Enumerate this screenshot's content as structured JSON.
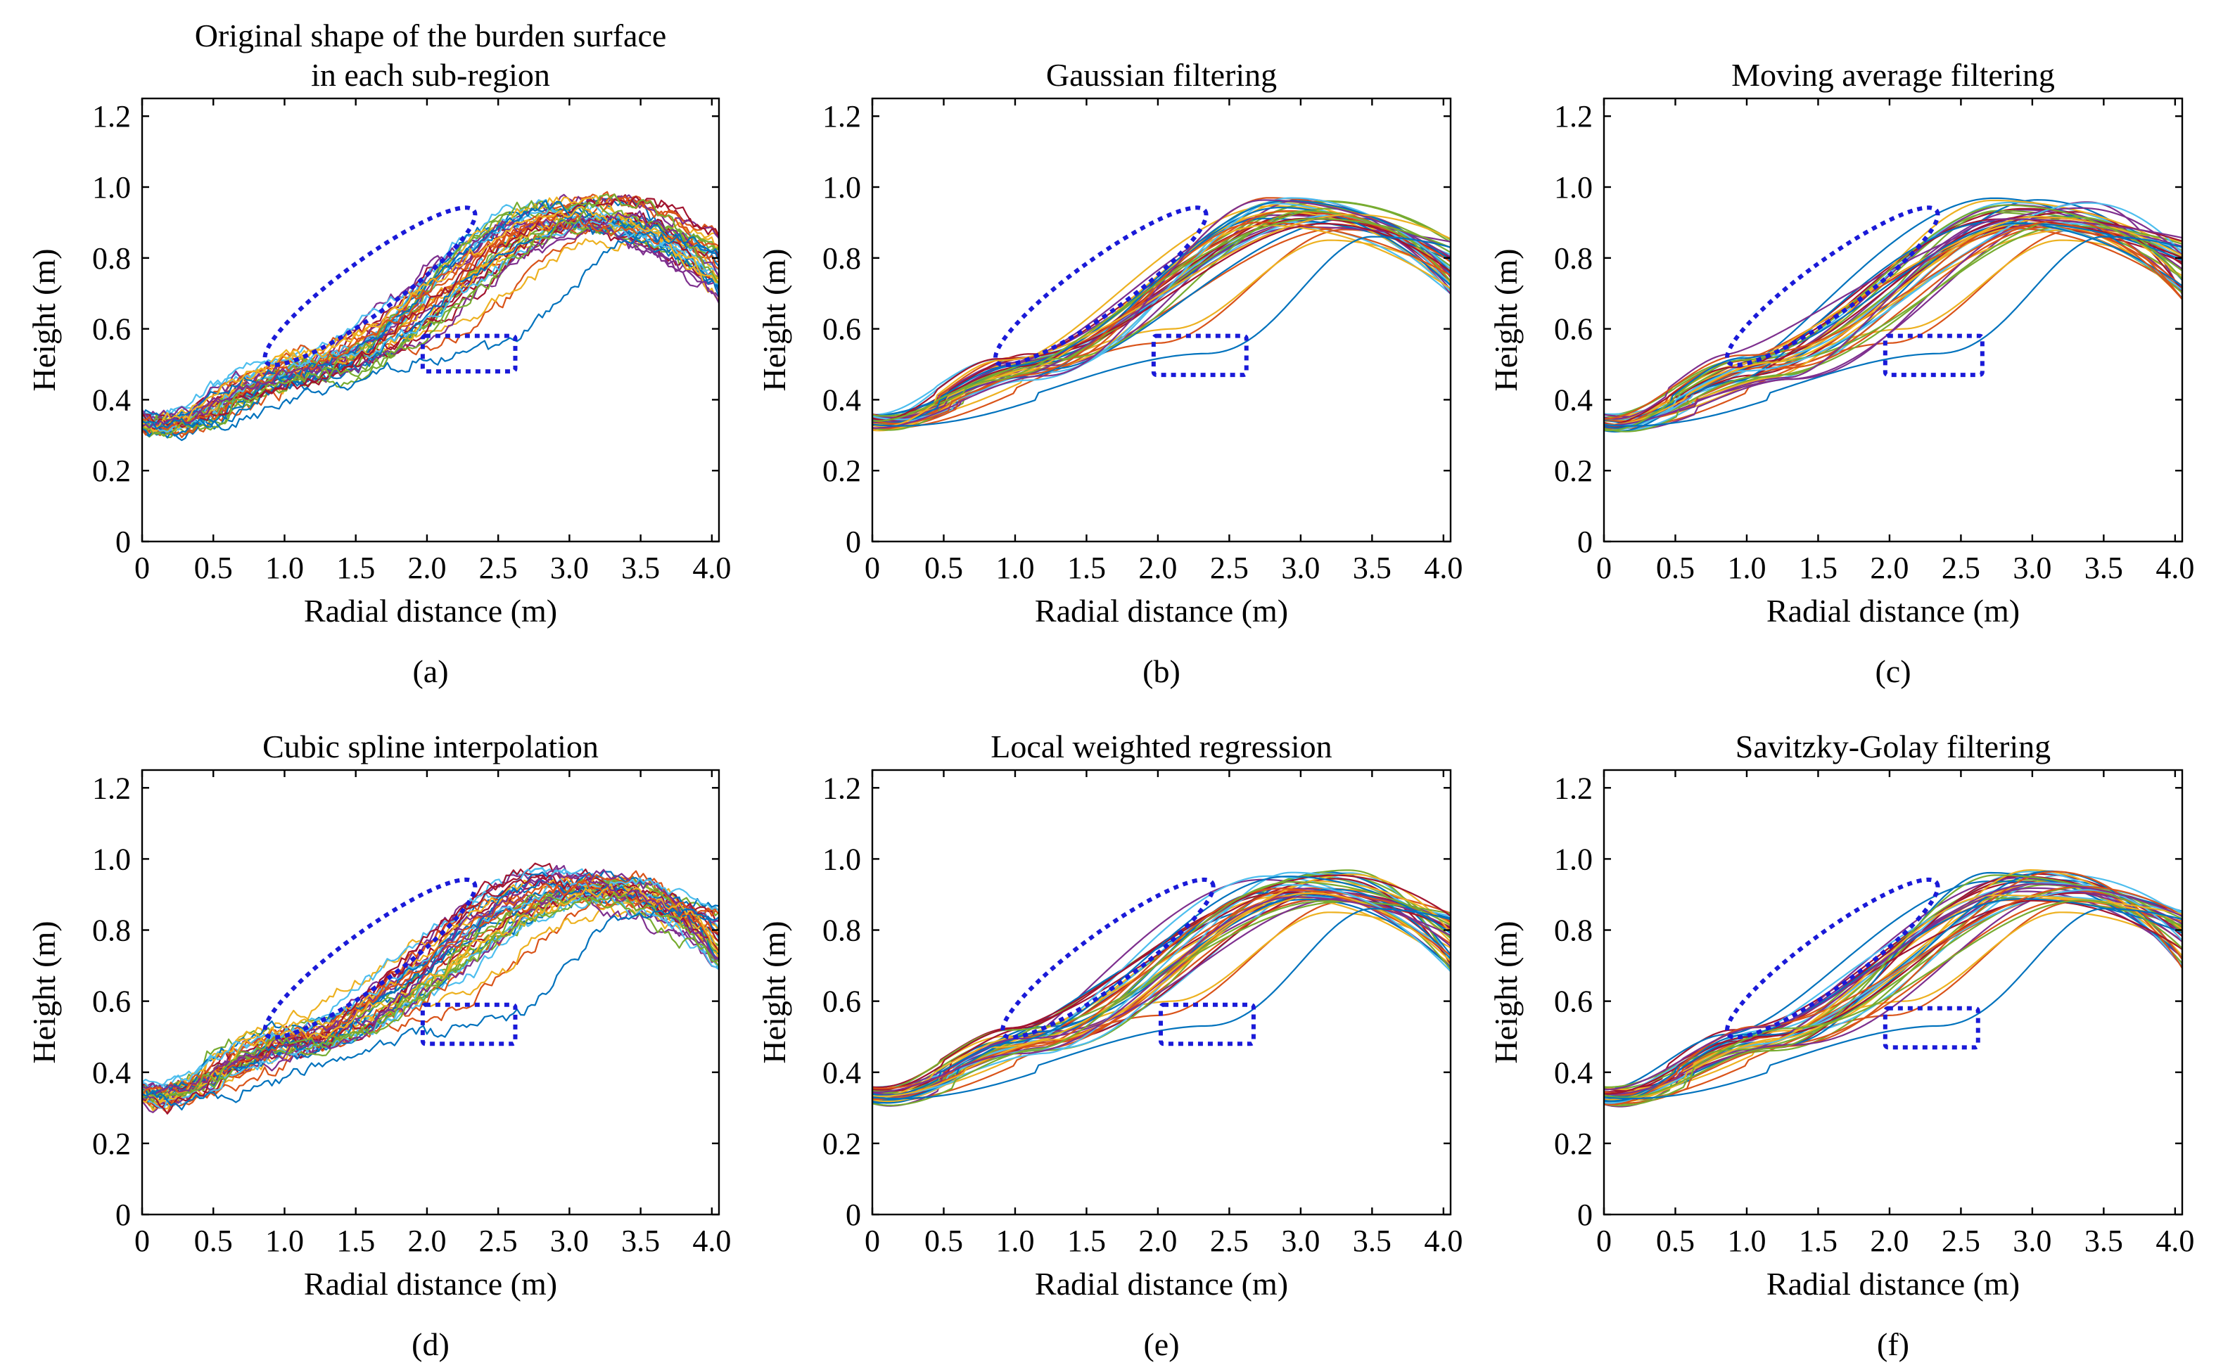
{
  "colors": {
    "highlight": "#1a1ad8",
    "series_palette": [
      "#0072BD",
      "#D95319",
      "#EDB120",
      "#7E2F8E",
      "#77AC30",
      "#4DBEEE",
      "#A2142F"
    ]
  },
  "chart_data": [
    {
      "type": "line",
      "panel_id": "a",
      "title_lines": [
        "Original shape of the burden surface",
        "in each sub-region"
      ],
      "caption": "(a)",
      "xlabel": "Radial distance (m)",
      "ylabel": "Height (m)",
      "xlim": [
        0,
        4.05
      ],
      "ylim": [
        0,
        1.25
      ],
      "xticks": [
        "0",
        "0.5",
        "1.0",
        "1.5",
        "2.0",
        "2.5",
        "3.0",
        "3.5",
        "4.0"
      ],
      "yticks": [
        "0",
        "0.2",
        "0.4",
        "0.6",
        "0.8",
        "1.0",
        "1.2"
      ],
      "grid": false,
      "series_count": 40,
      "smoothing": "raw",
      "annotations": [
        {
          "shape": "ellipse",
          "from": [
            0.95,
            0.53
          ],
          "to": [
            2.25,
            0.91
          ]
        },
        {
          "shape": "rectangle",
          "x": [
            1.97,
            2.62
          ],
          "y": [
            0.48,
            0.58
          ]
        }
      ]
    },
    {
      "type": "line",
      "panel_id": "b",
      "title_lines": [
        "Gaussian filtering"
      ],
      "caption": "(b)",
      "xlabel": "Radial distance (m)",
      "ylabel": "Height (m)",
      "xlim": [
        0,
        4.05
      ],
      "ylim": [
        0,
        1.25
      ],
      "xticks": [
        "0",
        "0.5",
        "1.0",
        "1.5",
        "2.0",
        "2.5",
        "3.0",
        "3.5",
        "4.0"
      ],
      "yticks": [
        "0",
        "0.2",
        "0.4",
        "0.6",
        "0.8",
        "1.0",
        "1.2"
      ],
      "grid": false,
      "series_count": 40,
      "smoothing": "smooth",
      "annotations": [
        {
          "shape": "ellipse",
          "from": [
            0.95,
            0.53
          ],
          "to": [
            2.25,
            0.91
          ]
        },
        {
          "shape": "rectangle",
          "x": [
            1.97,
            2.62
          ],
          "y": [
            0.47,
            0.58
          ]
        }
      ]
    },
    {
      "type": "line",
      "panel_id": "c",
      "title_lines": [
        "Moving average filtering"
      ],
      "caption": "(c)",
      "xlabel": "Radial distance (m)",
      "ylabel": "Height (m)",
      "xlim": [
        0,
        4.05
      ],
      "ylim": [
        0,
        1.25
      ],
      "xticks": [
        "0",
        "0.5",
        "1.0",
        "1.5",
        "2.0",
        "2.5",
        "3.0",
        "3.5",
        "4.0"
      ],
      "yticks": [
        "0",
        "0.2",
        "0.4",
        "0.6",
        "0.8",
        "1.0",
        "1.2"
      ],
      "grid": false,
      "series_count": 40,
      "smoothing": "smooth",
      "annotations": [
        {
          "shape": "ellipse",
          "from": [
            0.95,
            0.53
          ],
          "to": [
            2.25,
            0.91
          ]
        },
        {
          "shape": "rectangle",
          "x": [
            1.97,
            2.65
          ],
          "y": [
            0.47,
            0.58
          ]
        }
      ]
    },
    {
      "type": "line",
      "panel_id": "d",
      "title_lines": [
        "Cubic spline interpolation"
      ],
      "caption": "(d)",
      "xlabel": "Radial distance (m)",
      "ylabel": "Height (m)",
      "xlim": [
        0,
        4.05
      ],
      "ylim": [
        0,
        1.25
      ],
      "xticks": [
        "0",
        "0.5",
        "1.0",
        "1.5",
        "2.0",
        "2.5",
        "3.0",
        "3.5",
        "4.0"
      ],
      "yticks": [
        "0",
        "0.2",
        "0.4",
        "0.6",
        "0.8",
        "1.0",
        "1.2"
      ],
      "grid": false,
      "series_count": 40,
      "smoothing": "raw",
      "annotations": [
        {
          "shape": "ellipse",
          "from": [
            0.95,
            0.53
          ],
          "to": [
            2.25,
            0.91
          ]
        },
        {
          "shape": "rectangle",
          "x": [
            1.97,
            2.62
          ],
          "y": [
            0.48,
            0.59
          ]
        }
      ]
    },
    {
      "type": "line",
      "panel_id": "e",
      "title_lines": [
        "Local weighted regression"
      ],
      "caption": "(e)",
      "xlabel": "Radial distance (m)",
      "ylabel": "Height (m)",
      "xlim": [
        0,
        4.05
      ],
      "ylim": [
        0,
        1.25
      ],
      "xticks": [
        "0",
        "0.5",
        "1.0",
        "1.5",
        "2.0",
        "2.5",
        "3.0",
        "3.5",
        "4.0"
      ],
      "yticks": [
        "0",
        "0.2",
        "0.4",
        "0.6",
        "0.8",
        "1.0",
        "1.2"
      ],
      "grid": false,
      "series_count": 40,
      "smoothing": "smooth",
      "annotations": [
        {
          "shape": "ellipse",
          "from": [
            1.0,
            0.53
          ],
          "to": [
            2.3,
            0.91
          ]
        },
        {
          "shape": "rectangle",
          "x": [
            2.02,
            2.67
          ],
          "y": [
            0.48,
            0.59
          ]
        }
      ]
    },
    {
      "type": "line",
      "panel_id": "f",
      "title_lines": [
        "Savitzky-Golay filtering"
      ],
      "caption": "(f)",
      "xlabel": "Radial distance (m)",
      "ylabel": "Height (m)",
      "xlim": [
        0,
        4.05
      ],
      "ylim": [
        0,
        1.25
      ],
      "xticks": [
        "0",
        "0.5",
        "1.0",
        "1.5",
        "2.0",
        "2.5",
        "3.0",
        "3.5",
        "4.0"
      ],
      "yticks": [
        "0",
        "0.2",
        "0.4",
        "0.6",
        "0.8",
        "1.0",
        "1.2"
      ],
      "grid": false,
      "series_count": 40,
      "smoothing": "smooth",
      "annotations": [
        {
          "shape": "ellipse",
          "from": [
            0.95,
            0.53
          ],
          "to": [
            2.25,
            0.91
          ]
        },
        {
          "shape": "rectangle",
          "x": [
            1.97,
            2.62
          ],
          "y": [
            0.47,
            0.58
          ]
        }
      ]
    }
  ]
}
